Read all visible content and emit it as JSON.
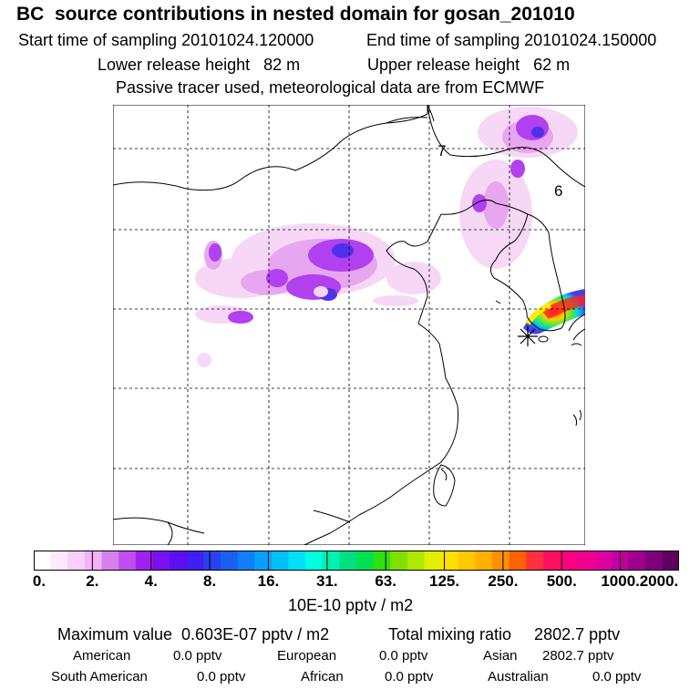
{
  "header": {
    "title": "BC  source contributions in nested domain for gosan_201010",
    "start_time": "Start time of sampling 20101024.120000",
    "end_time": "End time of sampling 20101024.150000",
    "lower_height": "Lower release height   82 m",
    "upper_height": "Upper release height   62 m",
    "tracer_note": "Passive tracer used, meteorological data are from ECMWF"
  },
  "map": {
    "labels": [
      "7",
      "6"
    ],
    "receptor_marker": "receptor-star-icon"
  },
  "colorbar": {
    "ticks": [
      "0.",
      "2.",
      "4.",
      "8.",
      "16.",
      "31.",
      "63.",
      "125.",
      "250.",
      "500.",
      "1000.",
      "2000."
    ],
    "unit": "10E-10 pptv / m2",
    "colors": [
      "#ffffff",
      "#fde8fd",
      "#f9d0f9",
      "#f2b2f4",
      "#d680f0",
      "#bf4df0",
      "#a020f0",
      "#7a10f0",
      "#5a10f0",
      "#4020f0",
      "#2a40f0",
      "#1a60f0",
      "#1080f8",
      "#0aa0f8",
      "#00c0f8",
      "#00e0f8",
      "#00ffe0",
      "#00f0b0",
      "#00e080",
      "#00e050",
      "#30e010",
      "#80e000",
      "#b0e800",
      "#e0f000",
      "#ffe000",
      "#ffc800",
      "#ffb000",
      "#ff9000",
      "#ff6000",
      "#ff3040",
      "#ff1060",
      "#ff0080",
      "#f00090",
      "#e000a0",
      "#c000a0",
      "#a00090",
      "#80007c",
      "#600060"
    ]
  },
  "summary": {
    "max_value": "Maximum value  0.603E-07 pptv / m2",
    "total": "Total mixing ratio     2802.7 pptv",
    "regions": [
      {
        "name": "American",
        "value": "0.0 pptv"
      },
      {
        "name": "European",
        "value": "0.0 pptv"
      },
      {
        "name": "Asian",
        "value": "2802.7 pptv"
      },
      {
        "name": "South American",
        "value": "0.0 pptv"
      },
      {
        "name": "African",
        "value": "0.0 pptv"
      },
      {
        "name": "Australian",
        "value": "0.0 pptv"
      }
    ]
  }
}
